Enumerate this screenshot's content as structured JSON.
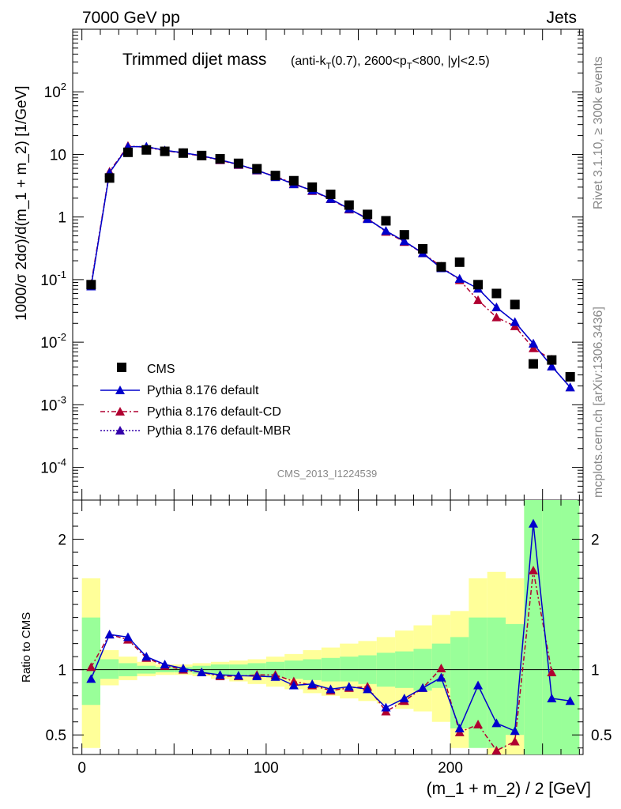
{
  "header": {
    "left": "7000 GeV pp",
    "right": "Jets"
  },
  "side": {
    "top": "Rivet 3.1.10, ≥ 300k events",
    "bottom": "mcplots.cern.ch [arXiv:1306.3436]"
  },
  "watermark": "CMS_2013_I1224539",
  "chart_data": {
    "type": "scatter",
    "title_main": "Trimmed dijet mass",
    "title_sub_html": "(anti-k_T(0.7), 2600<p_T<800, |y|<2.5)",
    "xlabel": "(m_1 + m_2) / 2 [GeV]",
    "ylabel": "1000/σ 2dσ)/d(m_1 + m_2) [1/GeV]",
    "ratio_ylabel": "Ratio to CMS",
    "xlim": [
      -5,
      272
    ],
    "ylim_log": [
      3e-05,
      1000
    ],
    "ratio_ylim": [
      0.35,
      2.3
    ],
    "x_ticks": [
      0,
      100,
      200
    ],
    "y_tick_labels": [
      "10^{-4}",
      "10^{-3}",
      "10^{-2}",
      "10^{-1}",
      "1",
      "10",
      "10^{2}"
    ],
    "ratio_ticks": [
      0.5,
      1,
      2
    ],
    "legend": [
      "CMS",
      "Pythia 8.176 default",
      "Pythia 8.176 default-CD",
      "Pythia 8.176 default-MBR"
    ],
    "colors": {
      "data": "#000000",
      "default": "#0000cc",
      "cd": "#b00030",
      "mbr": "#3300aa",
      "band_yellow": "#ffff99",
      "band_green": "#99ff99"
    },
    "x": [
      5,
      15,
      25,
      35,
      45,
      55,
      65,
      75,
      85,
      95,
      105,
      115,
      125,
      135,
      145,
      155,
      165,
      175,
      185,
      195,
      205,
      215,
      225,
      235,
      245,
      255,
      265
    ],
    "cms": [
      0.083,
      4.2,
      10.8,
      11.8,
      11.2,
      10.5,
      9.6,
      8.5,
      7.2,
      5.9,
      4.6,
      3.8,
      3.0,
      2.3,
      1.55,
      1.1,
      0.87,
      0.52,
      0.31,
      0.16,
      0.19,
      0.083,
      0.06,
      0.04,
      0.0045,
      0.0052,
      0.0028
    ],
    "default": [
      0.078,
      5.1,
      13.3,
      13.3,
      11.6,
      10.6,
      9.5,
      8.2,
      6.9,
      5.6,
      4.35,
      3.35,
      2.65,
      1.95,
      1.35,
      0.93,
      0.6,
      0.41,
      0.265,
      0.152,
      0.103,
      0.072,
      0.036,
      0.021,
      0.0095,
      0.0041,
      0.0019
    ],
    "cd": [
      0.085,
      5.3,
      13.7,
      12.9,
      11.5,
      10.5,
      9.4,
      8.1,
      6.8,
      5.55,
      4.45,
      3.45,
      2.6,
      1.93,
      1.32,
      0.96,
      0.58,
      0.4,
      0.265,
      0.162,
      0.098,
      0.047,
      0.025,
      0.018,
      0.008,
      0.0053,
      null
    ],
    "ratio_default": [
      0.93,
      1.27,
      1.25,
      1.1,
      1.04,
      1.01,
      0.98,
      0.96,
      0.955,
      0.95,
      0.945,
      0.88,
      0.89,
      0.85,
      0.87,
      0.85,
      0.71,
      0.78,
      0.86,
      0.94,
      0.55,
      0.88,
      0.59,
      0.53,
      2.12,
      0.78,
      0.76
    ],
    "ratio_cd": [
      1.02,
      1.27,
      1.23,
      1.09,
      1.03,
      1.0,
      0.98,
      0.95,
      0.95,
      0.96,
      0.96,
      0.91,
      0.88,
      0.84,
      0.86,
      0.87,
      0.68,
      0.76,
      0.86,
      1.01,
      0.52,
      0.58,
      0.38,
      0.45,
      1.76,
      0.98,
      null
    ],
    "band_green_lo": [
      0.73,
      0.93,
      0.95,
      0.97,
      0.98,
      0.98,
      0.97,
      0.96,
      0.96,
      0.95,
      0.94,
      0.93,
      0.92,
      0.91,
      0.91,
      0.89,
      0.87,
      0.86,
      0.84,
      0.86,
      0.55,
      0.4,
      0.4,
      0.5,
      0.35,
      0.35,
      0.35
    ],
    "band_green_hi": [
      1.4,
      1.08,
      1.05,
      1.03,
      1.02,
      1.02,
      1.03,
      1.04,
      1.04,
      1.05,
      1.06,
      1.07,
      1.08,
      1.09,
      1.1,
      1.11,
      1.13,
      1.14,
      1.16,
      1.2,
      1.25,
      1.4,
      1.4,
      1.35,
      2.3,
      2.3,
      2.3
    ],
    "band_yellow_lo": [
      0.4,
      0.88,
      0.92,
      0.95,
      0.96,
      0.96,
      0.95,
      0.93,
      0.91,
      0.89,
      0.87,
      0.85,
      0.82,
      0.8,
      0.78,
      0.76,
      0.74,
      0.7,
      0.68,
      0.6,
      0.4,
      0.55,
      0.35,
      0.35,
      0.35,
      0.35,
      0.35
    ],
    "band_yellow_hi": [
      1.7,
      1.15,
      1.1,
      1.06,
      1.04,
      1.04,
      1.05,
      1.06,
      1.07,
      1.08,
      1.1,
      1.12,
      1.15,
      1.17,
      1.2,
      1.22,
      1.25,
      1.3,
      1.34,
      1.42,
      1.45,
      1.7,
      1.75,
      1.7,
      2.3,
      2.3,
      2.3
    ]
  }
}
